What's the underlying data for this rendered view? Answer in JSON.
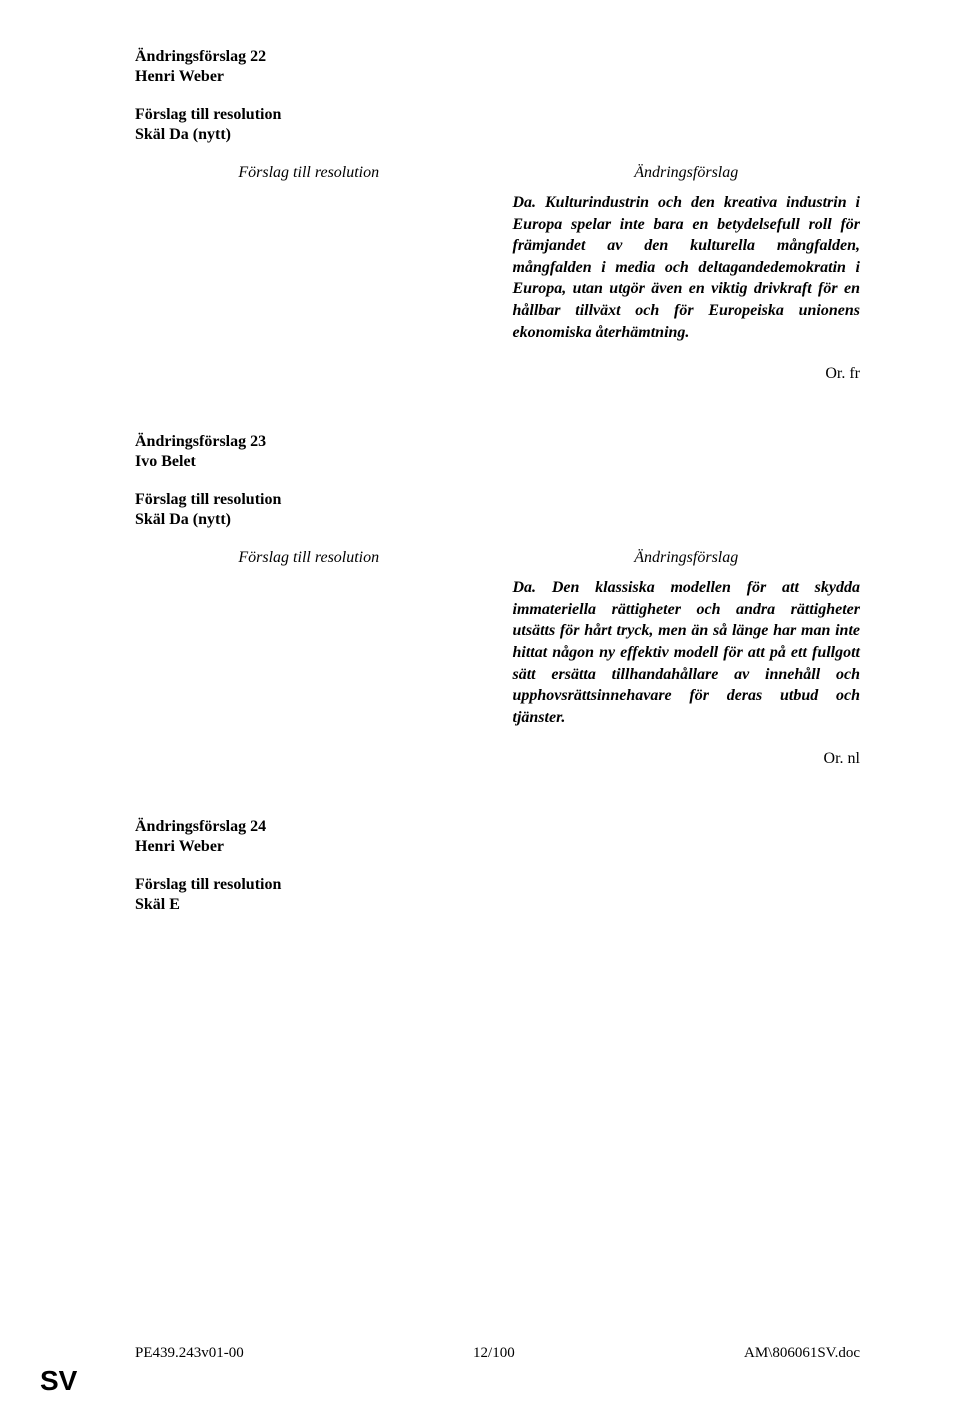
{
  "amendments": [
    {
      "number": "Ändringsförslag 22",
      "author": "Henri Weber",
      "proposal_title": "Förslag till resolution",
      "recital": "Skäl Da (nytt)",
      "left_header": "Förslag till resolution",
      "right_header": "Ändringsförslag",
      "amendment_text": "Da. Kulturindustrin och den kreativa industrin i Europa spelar inte bara en betydelsefull roll för främjandet av den kulturella mångfalden, mångfalden i media och deltagandedemokratin i Europa, utan utgör även en viktig drivkraft för en hållbar tillväxt och för Europeiska unionens ekonomiska återhämtning.",
      "lang": "Or. fr"
    },
    {
      "number": "Ändringsförslag 23",
      "author": "Ivo Belet",
      "proposal_title": "Förslag till resolution",
      "recital": "Skäl Da (nytt)",
      "left_header": "Förslag till resolution",
      "right_header": "Ändringsförslag",
      "amendment_text": "Da. Den klassiska modellen för att skydda immateriella rättigheter och andra rättigheter utsätts för hårt tryck, men än så länge har man inte hittat någon ny effektiv modell för att på ett fullgott sätt ersätta tillhandahållare av innehåll och upphovsrättsinnehavare för deras utbud och tjänster.",
      "lang": "Or. nl"
    },
    {
      "number": "Ändringsförslag 24",
      "author": "Henri Weber",
      "proposal_title": "Förslag till resolution",
      "recital": "Skäl E",
      "left_header": "",
      "right_header": "",
      "amendment_text": "",
      "lang": ""
    }
  ],
  "footer": {
    "left": "PE439.243v01-00",
    "center": "12/100",
    "right": "AM\\806061SV.doc"
  },
  "sv": "SV"
}
